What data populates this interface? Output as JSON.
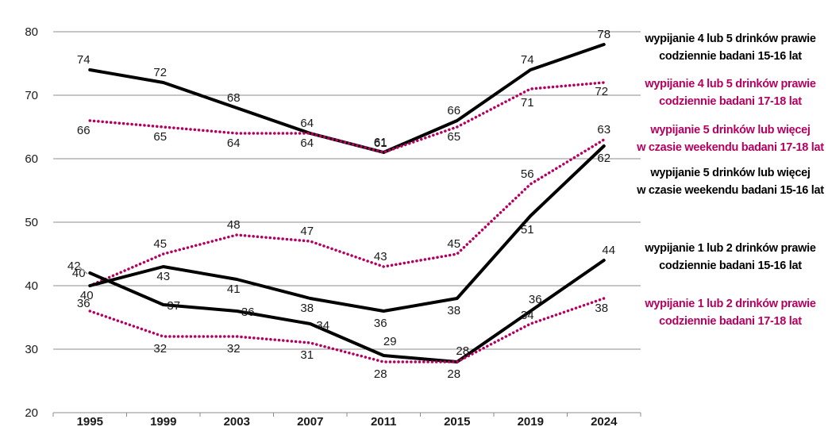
{
  "chart_data": {
    "type": "line",
    "x": [
      "1995",
      "1999",
      "2003",
      "2007",
      "2011",
      "2015",
      "2019",
      "2024"
    ],
    "ylim": [
      20,
      80
    ],
    "yticks": [
      20,
      30,
      40,
      50,
      60,
      70,
      80
    ],
    "grid": true,
    "legend_position": "right",
    "series": [
      {
        "name": "wypijanie 4 lub 5 drinków prawie codziennie badani 15-16 lat",
        "color": "#000000",
        "style": "solid",
        "values": [
          74,
          72,
          68,
          64,
          61,
          66,
          74,
          78
        ]
      },
      {
        "name": "wypijanie 4 lub 5 drinków prawie codziennie badani 17-18 lat",
        "color": "#b5005f",
        "style": "dotted",
        "values": [
          66,
          65,
          64,
          64,
          61,
          65,
          71,
          72
        ]
      },
      {
        "name": "wypijanie 5 drinków lub więcej w czasie weekendu badani 17-18 lat",
        "color": "#b5005f",
        "style": "dotted",
        "values": [
          40,
          45,
          48,
          47,
          43,
          45,
          56,
          63
        ]
      },
      {
        "name": "wypijanie 5 drinków lub więcej w czasie weekendu badani 15-16 lat",
        "color": "#000000",
        "style": "solid",
        "values": [
          40,
          43,
          41,
          38,
          36,
          38,
          51,
          62
        ]
      },
      {
        "name": "wypijanie 1 lub 2 drinków prawie codziennie badani 15-16 lat",
        "color": "#000000",
        "style": "solid",
        "values": [
          42,
          37,
          36,
          34,
          29,
          28,
          36,
          44
        ]
      },
      {
        "name": "wypijanie 1 lub 2 drinków prawie codziennie badani 17-18 lat",
        "color": "#b5005f",
        "style": "dotted",
        "values": [
          36,
          32,
          32,
          31,
          28,
          28,
          34,
          38
        ]
      }
    ]
  },
  "legend": [
    {
      "line1": "wypijanie 4 lub 5 drinków prawie",
      "line2": "codziennie badani  15-16 lat",
      "color": "#000000"
    },
    {
      "line1": "wypijanie 4 lub 5 drinków prawie",
      "line2": "codziennie badani  17-18 lat",
      "color": "#b5005f"
    },
    {
      "line1": "wypijanie 5 drinków lub więcej",
      "line2": "w czasie weekendu badani 17-18 lat",
      "color": "#b5005f"
    },
    {
      "line1": "wypijanie 5 drinków lub więcej",
      "line2": "w czasie weekendu badani 15-16 lat",
      "color": "#000000"
    },
    {
      "line1": "wypijanie 1 lub 2 drinków prawie",
      "line2": "codziennie badani 15-16 lat",
      "color": "#000000"
    },
    {
      "line1": "wypijanie 1 lub 2 drinków prawie",
      "line2": "codziennie badani 17-18 lat",
      "color": "#b5005f"
    }
  ]
}
